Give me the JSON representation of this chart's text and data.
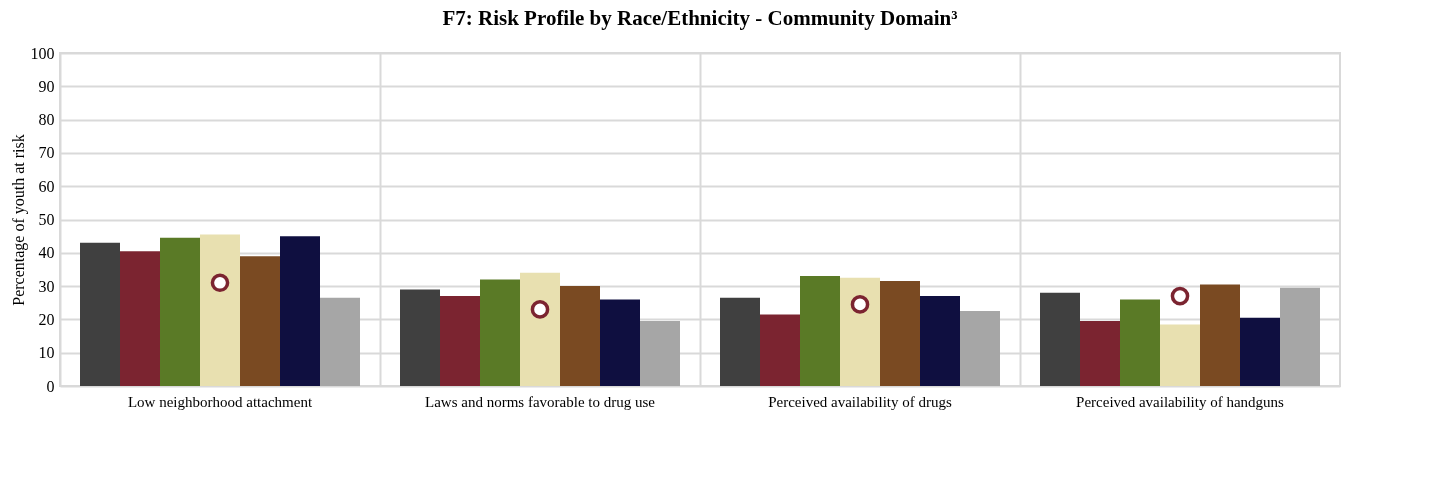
{
  "chart_data": {
    "type": "bar",
    "title": "F7: Risk Profile by Race/Ethnicity - Community Domain³",
    "ylabel": "Percentage of youth at risk",
    "categories": [
      "Low neighborhood attachment",
      "Laws and norms favorable to drug use",
      "Perceived availability of drugs",
      "Perceived availability of handguns"
    ],
    "series": [
      {
        "color": "#404040",
        "values": [
          43,
          29,
          26.5,
          28
        ]
      },
      {
        "color": "#7b2430",
        "values": [
          40.5,
          27,
          21.5,
          19.5
        ]
      },
      {
        "color": "#5a7a26",
        "values": [
          44.5,
          32,
          33,
          26
        ]
      },
      {
        "color": "#e8e0b0",
        "values": [
          45.5,
          34,
          32.5,
          18.5
        ]
      },
      {
        "color": "#7a4a22",
        "values": [
          39,
          30,
          31.5,
          30.5
        ]
      },
      {
        "color": "#0f0f40",
        "values": [
          45,
          26,
          27,
          20.5
        ]
      },
      {
        "color": "#a6a6a6",
        "values": [
          26.5,
          19.5,
          22.5,
          29.5
        ]
      },
      {
        "type": "scatter",
        "color": "#7b2430",
        "marker": "circle",
        "values": [
          31,
          23,
          24.5,
          27
        ]
      }
    ],
    "ylim": [
      0,
      100
    ],
    "yticks": [
      0,
      10,
      20,
      30,
      40,
      50,
      60,
      70,
      80,
      90,
      100
    ],
    "grid": true,
    "legend": false
  }
}
